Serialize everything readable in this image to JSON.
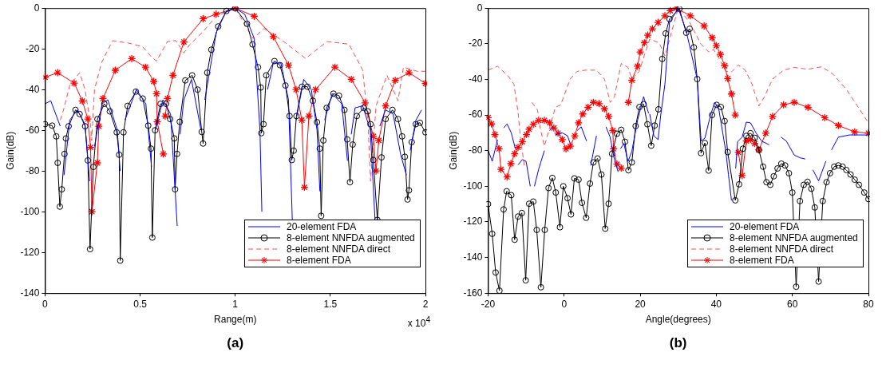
{
  "chart_data": [
    {
      "type": "line",
      "title": "(a)",
      "xlabel": "Range(m)",
      "ylabel": "Gain(dB)",
      "annotations": [
        "x 10$^{4}$"
      ],
      "legend": "bottom right",
      "xlim": [
        0,
        2
      ],
      "ylim": [
        -140,
        0
      ],
      "xticks": [
        0,
        0.5,
        1,
        1.5,
        2
      ],
      "yticks": [
        -140,
        -120,
        -100,
        -80,
        -60,
        -40,
        -20,
        0
      ],
      "series": [
        {
          "name": "20-element FDA",
          "color": "#0000ff",
          "marker": "none",
          "line_style": "solid",
          "x": [
            0,
            0.03,
            0.08,
            0.09,
            0.1,
            0.13,
            0.17,
            0.21,
            0.235,
            0.245,
            0.26,
            0.3,
            0.33,
            0.38,
            0.395,
            0.405,
            0.42,
            0.48,
            0.53,
            0.56,
            0.57,
            0.58,
            0.62,
            0.66,
            0.695,
            0.7,
            0.71,
            0.73,
            0.77,
            0.82,
            0.83,
            0.84,
            0.9,
            0.95,
            1,
            1.05,
            1.1,
            1.13,
            1.14,
            1.15,
            1.17,
            1.2,
            1.24,
            1.28,
            1.3,
            1.31,
            1.32,
            1.36,
            1.4,
            1.43,
            1.445,
            1.455,
            1.47,
            1.51,
            1.56,
            1.59,
            1.6,
            1.61,
            1.63,
            1.67,
            1.71,
            1.735,
            1.745,
            1.76,
            1.79,
            1.83,
            1.87,
            1.9,
            1.91,
            1.92,
            1.95,
            1.98
          ],
          "values": [
            -47,
            -45.5,
            -58,
            null,
            -82,
            -55,
            -50,
            -57,
            -85,
            null,
            -68,
            -47,
            -45,
            -60,
            -80,
            null,
            -55,
            -40,
            -47,
            -78,
            null,
            -60,
            -45,
            -52,
            -107,
            null,
            -62,
            -45,
            -35,
            -60,
            null,
            -45,
            -12,
            -2,
            0,
            -3,
            -15,
            -60,
            -100,
            null,
            -40,
            -27,
            -27,
            -45,
            -104,
            null,
            -55,
            -35,
            -40,
            -60,
            -90,
            null,
            -55,
            -42,
            -47,
            -75,
            null,
            -62,
            -49,
            -48,
            -60,
            -104,
            null,
            -58,
            -50,
            -52,
            -72,
            -82,
            null,
            -70,
            -55,
            -50
          ]
        },
        {
          "name": "8-element NNFDA augmented",
          "color": "#000000",
          "marker": "circle",
          "line_style": "solid",
          "x": [
            0,
            0.0375,
            0.0592,
            0.0664,
            0.0779,
            0.088,
            0.1025,
            0.1097,
            0.1241,
            0.1602,
            0.1818,
            0.2107,
            0.2251,
            0.2366,
            0.254,
            0.2756,
            0.3117,
            0.3406,
            0.3767,
            0.39,
            0.3954,
            0.4127,
            0.4343,
            0.4776,
            0.5137,
            0.5426,
            0.557,
            0.5642,
            0.5786,
            0.6074,
            0.6363,
            0.658,
            0.6796,
            0.6839,
            0.694,
            0.7083,
            0.7372,
            0.7734,
            0.8022,
            0.8239,
            0.8311,
            0.8528,
            0.8745,
            0.9105,
            0.9538,
            1,
            1.062,
            1.0909,
            1.1197,
            1.1341,
            1.1371,
            1.1486,
            1.163,
            1.2063,
            1.2352,
            1.2641,
            1.2857,
            1.2973,
            1.3074,
            1.3218,
            1.3507,
            1.3796,
            1.4084,
            1.43,
            1.4445,
            1.4517,
            1.4632,
            1.4805,
            1.5166,
            1.5455,
            1.5743,
            1.5887,
            1.6032,
            1.6176,
            1.6393,
            1.6753,
            1.697,
            1.7114,
            1.7258,
            1.7474,
            1.769,
            1.7906,
            1.8267,
            1.8556,
            1.8772,
            1.8917,
            1.9061,
            1.9133,
            1.9278,
            1.9494,
            1.971,
            2
          ],
          "values": [
            -57,
            -57.7,
            -63,
            -76,
            -97.5,
            -89,
            -71.6,
            -64,
            -58,
            -50,
            -52,
            -58,
            -74.8,
            -118.4,
            -78,
            -54.5,
            -47,
            -50.7,
            -61,
            -72,
            -124,
            -61,
            -48,
            -41,
            -44.4,
            -57.7,
            -69,
            -112.7,
            -60,
            -47,
            -47,
            -54.5,
            -64,
            -89,
            -71.6,
            -55.8,
            -35.5,
            -33,
            -40,
            -60.8,
            -66.5,
            -31.7,
            -20.4,
            -9,
            -1.4,
            0,
            -7.7,
            -17.8,
            -29,
            -39,
            -61.4,
            -57,
            -33,
            -26,
            -28,
            -38,
            -53,
            -74.6,
            -70,
            -53,
            -38.6,
            -38.6,
            -45.5,
            -56,
            -69,
            -102,
            -65,
            -49,
            -42,
            -43,
            -50,
            -64.5,
            -85.5,
            -67,
            -53,
            -49,
            -50.7,
            -57,
            -74.6,
            -104,
            -73.3,
            -54.5,
            -50,
            -54.5,
            -63,
            -73,
            -94,
            -89.5,
            -65.8,
            -57,
            -56.3,
            -61
          ]
        },
        {
          "name": "8-element NNFDA direct",
          "color": "#ff4d4d",
          "marker": "none",
          "line_style": "dashed",
          "x": [
            0.08,
            0.0952,
            0.13,
            0.1818,
            0.21,
            0.2395,
            0.245,
            0.26,
            0.2973,
            0.355,
            0.4416,
            0.5137,
            0.56,
            0.5859,
            0.6436,
            0.6868,
            0.73,
            0.76,
            0.8311,
            0.9,
            1,
            1.094,
            1.1517,
            1.2541,
            1.37,
            1.4823,
            1.5977,
            1.67,
            1.697,
            1.7114,
            1.7402,
            1.7977,
            1.8555,
            1.8844,
            1.9566,
            2
          ],
          "values": [
            -55,
            -50.7,
            -38,
            -31.7,
            -40,
            -57,
            -65,
            -40,
            -26.7,
            -16,
            -17.2,
            -19,
            -24,
            -26,
            -16.4,
            -15.9,
            -22,
            -18,
            -11.5,
            -4,
            0,
            -15,
            -10,
            -16.4,
            -24.7,
            -16.4,
            -17.7,
            -30.4,
            -54.5,
            -85,
            -48,
            -33,
            -45.5,
            -29,
            -31,
            -31
          ]
        },
        {
          "name": "8-element FDA",
          "color": "#ff0000",
          "marker": "cross",
          "line_style": "solid",
          "x": [
            0,
            0.0664,
            0.153,
            0.1963,
            0.2251,
            0.2395,
            0.2468,
            0.275,
            0.2828,
            0.3045,
            0.3694,
            0.456,
            0.5281,
            0.5714,
            0.5859,
            0.59,
            0.6219,
            0.627,
            0.632,
            0.6436,
            0.6724,
            0.7302,
            0.8311,
            0.9,
            1,
            1.1,
            1.2,
            1.28,
            1.32,
            1.35,
            1.364,
            1.3874,
            1.4228,
            1.5241,
            1.6104,
            1.6826,
            1.7258,
            1.7402,
            1.7547,
            1.7906,
            1.8411,
            1.9133,
            2
          ],
          "values": [
            -34,
            -31.7,
            -36.8,
            -45.6,
            -54.5,
            -68.4,
            -100,
            -76,
            -58,
            -44.4,
            -30.5,
            -24.8,
            -29,
            -36,
            -42,
            -55.8,
            -71.6,
            null,
            -53,
            -44.4,
            -33,
            -16.6,
            -5.2,
            -3,
            0,
            -4,
            -14,
            -28,
            -40,
            -55,
            -88,
            -53,
            -40,
            -29,
            -35,
            -46.5,
            -63,
            -80,
            -65,
            -48,
            -35.5,
            -31.7,
            -37
          ]
        }
      ]
    },
    {
      "type": "line",
      "title": "(b)",
      "xlabel": "Angle(degrees)",
      "ylabel": "Gain(dB)",
      "legend": "bottom right",
      "xlim": [
        -20,
        80
      ],
      "ylim": [
        -160,
        0
      ],
      "xticks": [
        -20,
        0,
        20,
        40,
        60,
        80
      ],
      "yticks": [
        -160,
        -140,
        -120,
        -100,
        -80,
        -60,
        -40,
        -20,
        0
      ],
      "series": [
        {
          "name": "20-element FDA",
          "color": "#0000ff",
          "marker": "none",
          "line_style": "solid",
          "x": [
            -20,
            -18.9,
            -17.5,
            -16.7,
            -15.9,
            -15,
            -13.9,
            -12.8,
            -12.4,
            -12.1,
            -11,
            -10,
            -8.9,
            -8.3,
            -7.8,
            -6.7,
            -5.2,
            -4.5,
            -3.8,
            -3.1,
            -2.7,
            -2.3,
            -0.5,
            0.9,
            1.6,
            2.5,
            3.4,
            4.5,
            5.9,
            6.4,
            7,
            8.5,
            9.7,
            11,
            12.1,
            13.2,
            14.2,
            14.5,
            14.8,
            15.7,
            16.8,
            17.8,
            19.3,
            20.9,
            22.2,
            22.35,
            22.5,
            23.6,
            24.7,
            25.4,
            26.5,
            27.7,
            30,
            32,
            35,
            36,
            37,
            38.5,
            39.6,
            40.7,
            42.5,
            43.2,
            44,
            44.5,
            45.1,
            45.6,
            46.8,
            47.9,
            49,
            50.5,
            51.9,
            53.9,
            55.5,
            57,
            58.4,
            60.5,
            62,
            63.4,
            64.4,
            65.4,
            66.9,
            68.8,
            69.5,
            70.3,
            72.1,
            75,
            80
          ],
          "values": [
            -79.6,
            -86,
            -73.8,
            null,
            -67.3,
            -65,
            -70,
            -79,
            null,
            -88,
            -85,
            -86,
            -100,
            null,
            -100,
            -90.5,
            -80,
            null,
            -68.8,
            -66.6,
            null,
            -71,
            -70,
            -71.7,
            -76,
            null,
            -68.8,
            -66.6,
            -74.6,
            null,
            -88.3,
            -71.7,
            null,
            -66.6,
            -72.4,
            -84.7,
            -91.9,
            null,
            -79,
            -76,
            -86,
            -80.4,
            -63,
            -49.7,
            -59,
            null,
            -59.4,
            -71.7,
            -73.8,
            -60,
            -42.7,
            -8,
            0,
            -12,
            -40,
            -74.6,
            -73,
            -60,
            -52.9,
            -57.2,
            -80.4,
            -93.4,
            -108,
            null,
            -90,
            -75,
            -72.4,
            -64,
            -64.4,
            -70.2,
            -74.6,
            -76.7,
            null,
            -72.4,
            -74.6,
            -82.5,
            -84,
            -84.7,
            null,
            -90.8,
            -97,
            -86,
            null,
            -79.6,
            -72.4,
            -71.2,
            -71.2
          ]
        },
        {
          "name": "8-element NNFDA augmented",
          "color": "#000000",
          "marker": "circle",
          "line_style": "solid",
          "x": [
            -20,
            -18.9,
            -18,
            -17,
            -15.9,
            -15.1,
            -13.9,
            -13,
            -12.1,
            -11.1,
            -10.1,
            -9.2,
            -8.1,
            -7.2,
            -6.1,
            -5.1,
            -4.1,
            -3.1,
            -2.2,
            -1.1,
            -0.2,
            0.9,
            1.8,
            2.7,
            3.8,
            4.7,
            5.8,
            6.8,
            7.7,
            8.8,
            9.8,
            10.8,
            11.7,
            12.6,
            13.9,
            15,
            16,
            16.9,
            17.8,
            18.8,
            19.8,
            20.9,
            21.9,
            22.9,
            23.8,
            24.8,
            25.8,
            26.7,
            27.7,
            30.3,
            32.1,
            33,
            34.1,
            35,
            36,
            37,
            38,
            38.9,
            40.1,
            41.2,
            42.2,
            43,
            45,
            46,
            47,
            47.9,
            49,
            50.1,
            51.2,
            52.3,
            53.2,
            54.2,
            55.1,
            56.1,
            57.1,
            58.1,
            59.1,
            60,
            61,
            62,
            63,
            64,
            65,
            65.9,
            66.9,
            68,
            69,
            69.9,
            71,
            72.1,
            73.2,
            74.2,
            75.3,
            76.4,
            77.5,
            78.9,
            80
          ],
          "values": [
            -110,
            -126.7,
            -148.4,
            -158.6,
            -113,
            -102.8,
            -105,
            -130,
            -117,
            -115,
            -152.8,
            -109.8,
            -108.6,
            -124.5,
            -156.7,
            -124.5,
            -101,
            -95.3,
            -103.5,
            -123,
            -100,
            -106.7,
            -115.8,
            -95.6,
            -96.3,
            -109.3,
            -117.7,
            -98.5,
            -86.6,
            -84.4,
            -93.4,
            -123.8,
            -109.8,
            -81.8,
            -70.5,
            -68.3,
            -75,
            -91,
            -86.6,
            -66.2,
            -55.5,
            -53.9,
            -65.2,
            -77.2,
            -65.9,
            -56.8,
            -28.5,
            -14.2,
            -6.1,
            -0.4,
            -13.8,
            -11.6,
            -22,
            -39.8,
            -81.4,
            -75.7,
            -91.2,
            -60,
            -54.3,
            -55.5,
            -63.4,
            -80.8,
            -107.9,
            -98.9,
            -78.9,
            -71.7,
            -70.2,
            -72.8,
            -79.6,
            -89,
            -97.7,
            -99.2,
            -94.4,
            -90,
            -87.3,
            -88.3,
            -92.7,
            -103.5,
            -156.4,
            -108.3,
            -99.2,
            -97.5,
            -101.4,
            -111.9,
            -153.5,
            -108.3,
            -97.7,
            -92.7,
            -89,
            -88.3,
            -89,
            -90.9,
            -93.4,
            -96.3,
            -99.2,
            -103.5,
            -107.2
          ]
        },
        {
          "name": "8-element NNFDA direct",
          "color": "#ff4d4d",
          "marker": "none",
          "line_style": "dashed",
          "x": [
            -20,
            -17.5,
            -14.6,
            -13.2,
            -12.1,
            -11.4,
            -10.4,
            -9.5,
            -8.5,
            -7,
            -6.3,
            -5.2,
            -2.3,
            -0.9,
            1.6,
            3.4,
            5.6,
            8.5,
            10.6,
            12.1,
            13.2,
            15,
            16.8,
            17.8,
            19.7,
            22.5,
            25,
            26.5,
            30,
            33,
            36,
            38,
            39.3,
            40.7,
            42.5,
            44,
            45.8,
            47.6,
            49.4,
            51.2,
            52.6,
            54.8,
            57.7,
            60.5,
            64.1,
            67.7,
            70.6,
            74.2,
            77.8,
            80
          ],
          "values": [
            -34.8,
            -32.6,
            -38.4,
            -42.7,
            -58.6,
            -74.6,
            -89,
            null,
            -52.9,
            -57.2,
            -67.3,
            -77.5,
            -55.7,
            -54.3,
            -39.8,
            -35.5,
            -34.8,
            -34.8,
            -39.8,
            -52.9,
            -50,
            -31.1,
            -33.3,
            -39.8,
            -35.5,
            -17.4,
            -19.5,
            -26.8,
            0,
            -8,
            -20.3,
            -24.6,
            -23.2,
            -28.2,
            -35.5,
            -35.8,
            -31.9,
            -34.8,
            -42.7,
            -55,
            -50,
            -39.8,
            -34.8,
            -33.3,
            -34.3,
            -32.9,
            -36.9,
            -45.6,
            -57.2,
            -64.4
          ]
        },
        {
          "name": "8-element FDA",
          "color": "#ff0000",
          "marker": "cross",
          "line_style": "solid",
          "x": [
            -20,
            -19.1,
            -18.2,
            -17.1,
            -16.6,
            -15,
            -14,
            -13,
            -12.1,
            -11,
            -9.9,
            -9.2,
            -8.1,
            -6.7,
            -5.2,
            -3.8,
            -2.7,
            -1.6,
            -0.5,
            0.5,
            1.6,
            2.8,
            3.8,
            4.9,
            6.3,
            7.7,
            9.2,
            10.6,
            11.7,
            12.8,
            13,
            13.9,
            15,
            15.5,
            16.9,
            17.8,
            19.3,
            20,
            21.1,
            22,
            23.2,
            24.7,
            26.5,
            27.9,
            29.5,
            33.2,
            36.8,
            38.9,
            40,
            41.1,
            42.2,
            43,
            44,
            45,
            45.4,
            45.8,
            46.8,
            47.9,
            49,
            50.1,
            51.2,
            53,
            54.8,
            57.7,
            60.5,
            64.1,
            68.5,
            72.1,
            76.4,
            80
          ],
          "values": [
            -61.5,
            -65,
            -71,
            -79,
            -90.5,
            -94.8,
            -87.3,
            -81.8,
            -78.2,
            -75,
            -71,
            -68,
            -65.2,
            -63,
            -63,
            -64.4,
            -67.3,
            -70.2,
            -73.8,
            -79,
            -77.5,
            -71.7,
            -64.4,
            -59.4,
            -55.7,
            -52.9,
            -53.6,
            -56.5,
            -60.8,
            -68.8,
            -79,
            -87.6,
            -89.8,
            null,
            -52.9,
            -40.5,
            -32.6,
            -24.6,
            -19.5,
            -15.2,
            -11.6,
            -8,
            -4.3,
            -1.4,
            0,
            -4.3,
            -10,
            -16.6,
            -21,
            -26,
            -32.3,
            -39.5,
            -48.2,
            -60,
            null,
            -81,
            -94,
            -74.6,
            -73.8,
            -76,
            -79.6,
            -70.2,
            -60.8,
            -54.3,
            -52.9,
            -55.7,
            -61.5,
            -65.9,
            -69.5,
            -70.2
          ]
        }
      ]
    }
  ]
}
